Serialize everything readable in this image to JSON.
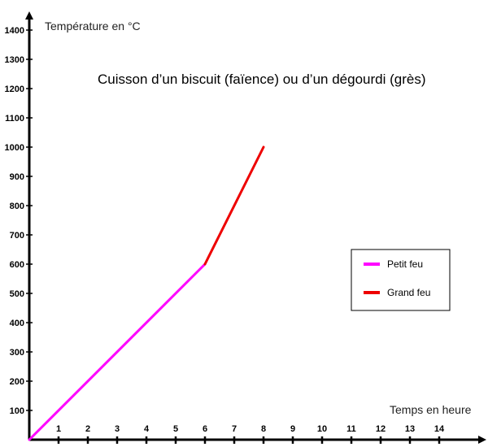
{
  "chart_data": {
    "type": "line",
    "title": "Cuisson d’un biscuit (faïence) ou d’un dégourdi (grès)",
    "xlabel": "Temps en heure",
    "ylabel": "Température en °C",
    "xlim": [
      0,
      15
    ],
    "ylim": [
      0,
      1450
    ],
    "x_ticks": [
      "1",
      "2",
      "3",
      "4",
      "5",
      "6",
      "7",
      "8",
      "9",
      "10",
      "11",
      "12",
      "13",
      "14"
    ],
    "y_ticks": [
      "100",
      "200",
      "300",
      "400",
      "500",
      "600",
      "700",
      "800",
      "900",
      "1000",
      "1100",
      "1200",
      "1300",
      "1400"
    ],
    "grid": false,
    "legend_position": "right",
    "series": [
      {
        "name": "Petit feu",
        "color": "#ff00ff",
        "x": [
          0,
          6
        ],
        "y": [
          0,
          600
        ]
      },
      {
        "name": "Grand feu",
        "color": "#ee0000",
        "x": [
          6,
          8
        ],
        "y": [
          600,
          1000
        ]
      }
    ]
  }
}
